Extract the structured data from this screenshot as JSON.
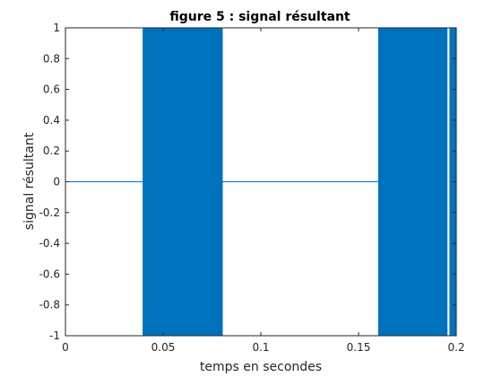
{
  "chart_data": {
    "type": "line",
    "title": "figure 5 : signal résultant",
    "xlabel": "temps en secondes",
    "ylabel": "signal résultant",
    "xlim": [
      0,
      0.2
    ],
    "ylim": [
      -1,
      1
    ],
    "x_ticks": [
      0,
      0.05,
      0.1,
      0.15,
      0.2
    ],
    "x_tick_labels": [
      "0",
      "0.05",
      "0.1",
      "0.15",
      "0.2"
    ],
    "y_ticks": [
      -1,
      -0.8,
      -0.6,
      -0.4,
      -0.2,
      0,
      0.2,
      0.4,
      0.6,
      0.8,
      1
    ],
    "y_tick_labels": [
      "-1",
      "-0.8",
      "-0.6",
      "-0.4",
      "-0.2",
      "0",
      "0.2",
      "0.4",
      "0.6",
      "0.8",
      "1"
    ],
    "grid": false,
    "line_color": "#0072BD",
    "axis_color": "#262626",
    "series": [
      {
        "segments": [
          {
            "kind": "flat",
            "x_start": 0,
            "x_end": 0.0395,
            "value": 0
          },
          {
            "kind": "oscillation",
            "x_start": 0.0395,
            "x_end": 0.0805,
            "min": -1,
            "max": 1
          },
          {
            "kind": "flat",
            "x_start": 0.0805,
            "x_end": 0.16,
            "value": 0
          },
          {
            "kind": "oscillation",
            "x_start": 0.16,
            "x_end": 0.1955,
            "min": -1,
            "max": 1
          },
          {
            "kind": "oscillation",
            "x_start": 0.1965,
            "x_end": 0.2,
            "min": -1,
            "max": 1
          }
        ]
      }
    ]
  }
}
